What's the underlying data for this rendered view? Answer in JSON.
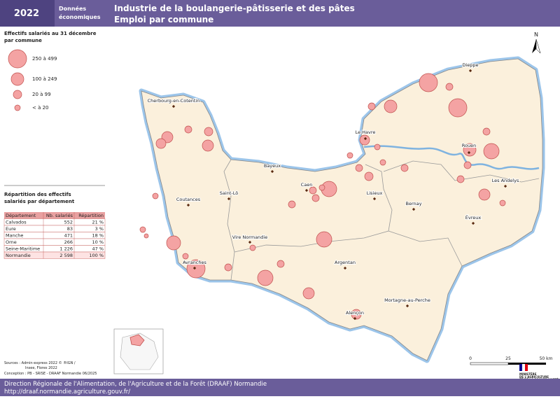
{
  "header": {
    "year": "2022",
    "category": [
      "Données",
      "économiques"
    ],
    "title": "Industrie de la boulangerie-pâtisserie et des pâtes",
    "subtitle": "Emploi par commune"
  },
  "legend": {
    "title": [
      "Effectifs salariés au 31 décembre",
      "par commune"
    ],
    "classes": [
      "250 à 499",
      "100 à 249",
      "20 à   99",
      "< à   20"
    ]
  },
  "table": {
    "title": [
      "Répartition des effectifs",
      "salariés par département"
    ],
    "columns": [
      "Département",
      "Nb. salariés",
      "Répartition"
    ],
    "rows": [
      [
        "Calvados",
        "552",
        "21 %"
      ],
      [
        "Eure",
        "83",
        "3 %"
      ],
      [
        "Manche",
        "471",
        "18 %"
      ],
      [
        "Orne",
        "266",
        "10 %"
      ],
      [
        "Seine-Maritime",
        "1 226",
        "47 %"
      ],
      [
        "Normandie",
        "2 598",
        "100 %"
      ]
    ]
  },
  "map": {
    "north": "N",
    "cities": [
      "Dieppe",
      "Cherbourg-en-Cotentin",
      "Le Havre",
      "Rouen",
      "Bayeux",
      "Caen",
      "Saint-Lô",
      "Lisieux",
      "Les Andelys",
      "Coutances",
      "Bernay",
      "Évreux",
      "Vire Normandie",
      "Argentan",
      "Avranches",
      "Mortagne-au-Perche",
      "Alençon"
    ],
    "scale": [
      "0",
      "25",
      "50 km"
    ]
  },
  "sources": [
    "Sources : Admin-express 2022 © ®IGN /",
    "Insee, Flores 2022",
    "Conception : PB - SRISE - DRAAF Normandie 06/2025"
  ],
  "logo": [
    "MINISTÈRE",
    "DE L'AGRICULTURE",
    "ET DE LA SOUVERAINETÉ",
    "ALIMENTAIRE"
  ],
  "footer": {
    "org": "Direction Régionale de l'Alimentation, de l'Agriculture et de la Forêt (DRAAF) Normandie",
    "url": "http://draaf.normandie.agriculture.gouv.fr/"
  }
}
